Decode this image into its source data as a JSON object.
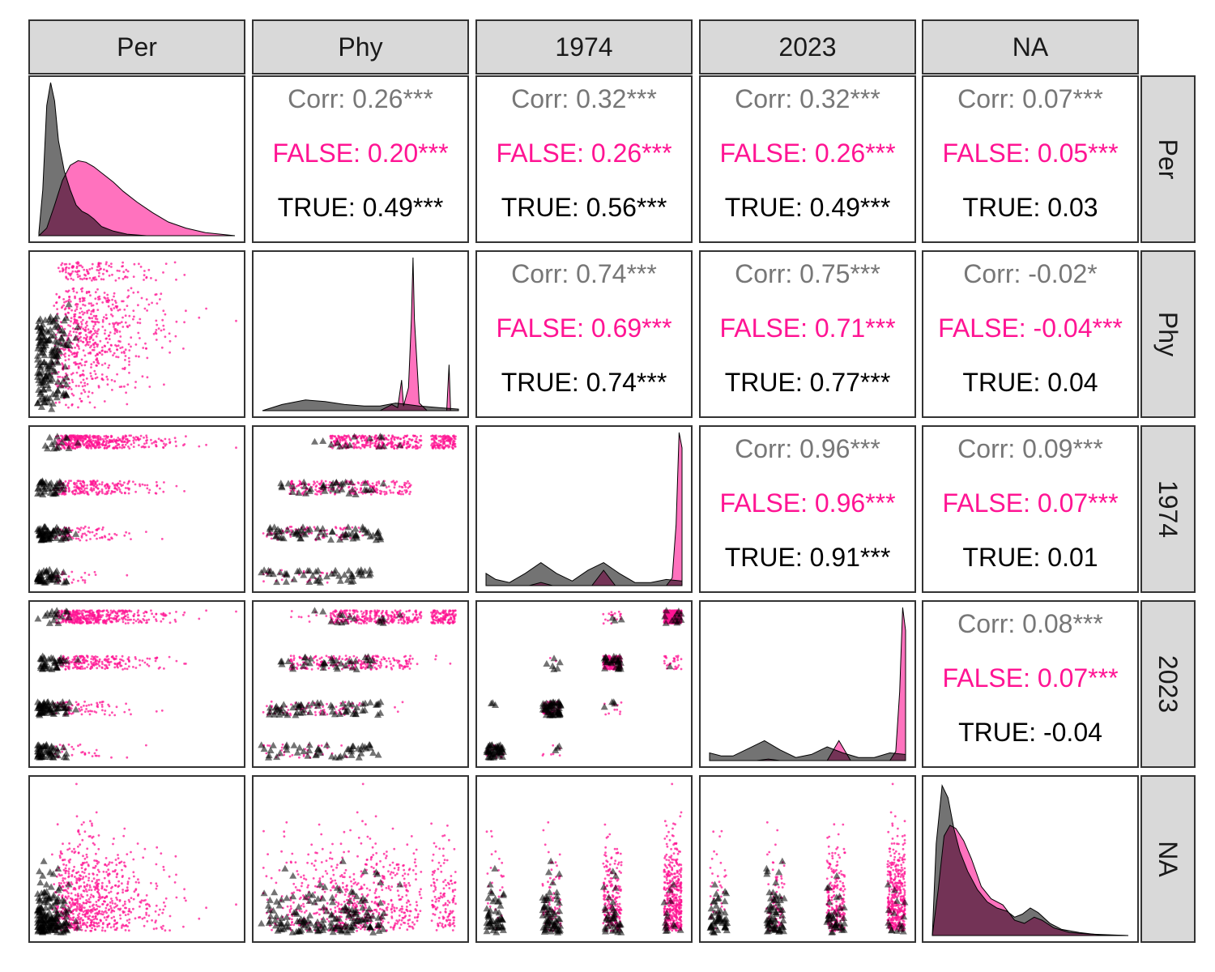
{
  "chart_data": {
    "type": "scatter",
    "title": "",
    "variables": [
      "Per",
      "Phy",
      "1974",
      "2023",
      "NA"
    ],
    "groups": [
      {
        "name": "FALSE",
        "color": "#ff1493",
        "marker": "point"
      },
      {
        "name": "TRUE",
        "color": "#000000",
        "marker": "triangle"
      }
    ],
    "overall_color": "#777777",
    "correlations": [
      {
        "row": "Per",
        "col": "Phy",
        "overall": "Corr: 0.26***",
        "false": "FALSE: 0.20***",
        "true": "TRUE: 0.49***"
      },
      {
        "row": "Per",
        "col": "1974",
        "overall": "Corr: 0.32***",
        "false": "FALSE: 0.26***",
        "true": "TRUE: 0.56***"
      },
      {
        "row": "Per",
        "col": "2023",
        "overall": "Corr: 0.32***",
        "false": "FALSE: 0.26***",
        "true": "TRUE: 0.49***"
      },
      {
        "row": "Per",
        "col": "NA",
        "overall": "Corr: 0.07***",
        "false": "FALSE: 0.05***",
        "true": "TRUE: 0.03"
      },
      {
        "row": "Phy",
        "col": "1974",
        "overall": "Corr: 0.74***",
        "false": "FALSE: 0.69***",
        "true": "TRUE: 0.74***"
      },
      {
        "row": "Phy",
        "col": "2023",
        "overall": "Corr: 0.75***",
        "false": "FALSE: 0.71***",
        "true": "TRUE: 0.77***"
      },
      {
        "row": "Phy",
        "col": "NA",
        "overall": "Corr: -0.02*",
        "false": "FALSE: -0.04***",
        "true": "TRUE: 0.04"
      },
      {
        "row": "1974",
        "col": "2023",
        "overall": "Corr: 0.96***",
        "false": "FALSE: 0.96***",
        "true": "TRUE: 0.91***"
      },
      {
        "row": "1974",
        "col": "NA",
        "overall": "Corr: 0.09***",
        "false": "FALSE: 0.07***",
        "true": "TRUE: 0.01"
      },
      {
        "row": "2023",
        "col": "NA",
        "overall": "Corr: 0.08***",
        "false": "FALSE: 0.07***",
        "true": "TRUE: -0.04"
      }
    ],
    "density_shapes": {
      "Per": {
        "TRUE": [
          [
            0.0,
            0.02
          ],
          [
            0.02,
            0.3
          ],
          [
            0.04,
            0.85
          ],
          [
            0.06,
            1.0
          ],
          [
            0.08,
            0.88
          ],
          [
            0.1,
            0.62
          ],
          [
            0.13,
            0.42
          ],
          [
            0.16,
            0.3
          ],
          [
            0.19,
            0.2
          ],
          [
            0.22,
            0.16
          ],
          [
            0.25,
            0.14
          ],
          [
            0.28,
            0.11
          ],
          [
            0.32,
            0.06
          ],
          [
            0.38,
            0.03
          ],
          [
            0.45,
            0.01
          ],
          [
            0.55,
            0.0
          ],
          [
            1.0,
            0.0
          ]
        ],
        "FALSE": [
          [
            0.0,
            0.0
          ],
          [
            0.04,
            0.05
          ],
          [
            0.08,
            0.2
          ],
          [
            0.12,
            0.36
          ],
          [
            0.16,
            0.46
          ],
          [
            0.2,
            0.49
          ],
          [
            0.24,
            0.48
          ],
          [
            0.28,
            0.45
          ],
          [
            0.33,
            0.4
          ],
          [
            0.38,
            0.35
          ],
          [
            0.43,
            0.29
          ],
          [
            0.5,
            0.22
          ],
          [
            0.58,
            0.15
          ],
          [
            0.66,
            0.09
          ],
          [
            0.75,
            0.05
          ],
          [
            0.85,
            0.02
          ],
          [
            1.0,
            0.0
          ]
        ]
      },
      "Phy": {
        "TRUE": [
          [
            0.0,
            0.0
          ],
          [
            0.1,
            0.04
          ],
          [
            0.22,
            0.07
          ],
          [
            0.32,
            0.06
          ],
          [
            0.42,
            0.04
          ],
          [
            0.52,
            0.03
          ],
          [
            0.6,
            0.03
          ],
          [
            0.68,
            0.05
          ],
          [
            0.74,
            0.04
          ],
          [
            0.8,
            0.03
          ],
          [
            0.9,
            0.02
          ],
          [
            1.0,
            0.01
          ]
        ],
        "FALSE": [
          [
            0.0,
            0.0
          ],
          [
            0.6,
            0.0
          ],
          [
            0.63,
            0.02
          ],
          [
            0.66,
            0.04
          ],
          [
            0.69,
            0.02
          ],
          [
            0.71,
            0.2
          ],
          [
            0.72,
            0.03
          ],
          [
            0.745,
            0.15
          ],
          [
            0.76,
            0.6
          ],
          [
            0.768,
            1.0
          ],
          [
            0.775,
            0.6
          ],
          [
            0.8,
            0.05
          ],
          [
            0.84,
            0.0
          ],
          [
            0.94,
            0.0
          ],
          [
            0.952,
            0.3
          ],
          [
            0.96,
            0.0
          ],
          [
            1.0,
            0.0
          ]
        ]
      },
      "1974": {
        "TRUE": [
          [
            0.0,
            0.08
          ],
          [
            0.05,
            0.04
          ],
          [
            0.12,
            0.02
          ],
          [
            0.2,
            0.08
          ],
          [
            0.28,
            0.15
          ],
          [
            0.36,
            0.08
          ],
          [
            0.44,
            0.03
          ],
          [
            0.52,
            0.1
          ],
          [
            0.6,
            0.15
          ],
          [
            0.68,
            0.08
          ],
          [
            0.76,
            0.02
          ],
          [
            0.84,
            0.02
          ],
          [
            0.92,
            0.04
          ],
          [
            1.0,
            0.03
          ]
        ],
        "FALSE": [
          [
            0.0,
            0.0
          ],
          [
            0.22,
            0.0
          ],
          [
            0.28,
            0.02
          ],
          [
            0.34,
            0.0
          ],
          [
            0.54,
            0.0
          ],
          [
            0.6,
            0.1
          ],
          [
            0.66,
            0.0
          ],
          [
            0.92,
            0.0
          ],
          [
            0.95,
            0.05
          ],
          [
            0.97,
            0.4
          ],
          [
            0.985,
            1.0
          ],
          [
            1.0,
            0.9
          ]
        ]
      },
      "2023": {
        "TRUE": [
          [
            0.0,
            0.05
          ],
          [
            0.06,
            0.03
          ],
          [
            0.12,
            0.03
          ],
          [
            0.2,
            0.08
          ],
          [
            0.28,
            0.13
          ],
          [
            0.36,
            0.07
          ],
          [
            0.44,
            0.02
          ],
          [
            0.52,
            0.04
          ],
          [
            0.6,
            0.09
          ],
          [
            0.68,
            0.05
          ],
          [
            0.76,
            0.02
          ],
          [
            0.84,
            0.02
          ],
          [
            0.92,
            0.05
          ],
          [
            1.0,
            0.04
          ]
        ],
        "FALSE": [
          [
            0.0,
            0.0
          ],
          [
            0.24,
            0.0
          ],
          [
            0.3,
            0.01
          ],
          [
            0.36,
            0.0
          ],
          [
            0.6,
            0.0
          ],
          [
            0.66,
            0.13
          ],
          [
            0.72,
            0.0
          ],
          [
            0.92,
            0.0
          ],
          [
            0.95,
            0.06
          ],
          [
            0.97,
            0.45
          ],
          [
            0.985,
            1.0
          ],
          [
            1.0,
            0.85
          ]
        ]
      },
      "NA": {
        "TRUE": [
          [
            0.0,
            0.0
          ],
          [
            0.02,
            0.6
          ],
          [
            0.05,
            0.98
          ],
          [
            0.08,
            0.9
          ],
          [
            0.11,
            0.7
          ],
          [
            0.14,
            0.55
          ],
          [
            0.18,
            0.42
          ],
          [
            0.23,
            0.3
          ],
          [
            0.28,
            0.22
          ],
          [
            0.33,
            0.18
          ],
          [
            0.38,
            0.16
          ],
          [
            0.42,
            0.12
          ],
          [
            0.46,
            0.14
          ],
          [
            0.5,
            0.18
          ],
          [
            0.54,
            0.15
          ],
          [
            0.6,
            0.08
          ],
          [
            0.66,
            0.04
          ],
          [
            0.75,
            0.02
          ],
          [
            0.85,
            0.005
          ],
          [
            1.0,
            0.0
          ]
        ],
        "FALSE": [
          [
            0.0,
            0.0
          ],
          [
            0.03,
            0.3
          ],
          [
            0.06,
            0.65
          ],
          [
            0.09,
            0.72
          ],
          [
            0.12,
            0.7
          ],
          [
            0.16,
            0.62
          ],
          [
            0.2,
            0.5
          ],
          [
            0.25,
            0.32
          ],
          [
            0.3,
            0.24
          ],
          [
            0.36,
            0.2
          ],
          [
            0.42,
            0.1
          ],
          [
            0.47,
            0.08
          ],
          [
            0.52,
            0.12
          ],
          [
            0.56,
            0.1
          ],
          [
            0.62,
            0.05
          ],
          [
            0.7,
            0.02
          ],
          [
            0.8,
            0.01
          ],
          [
            1.0,
            0.0
          ]
        ]
      }
    }
  }
}
